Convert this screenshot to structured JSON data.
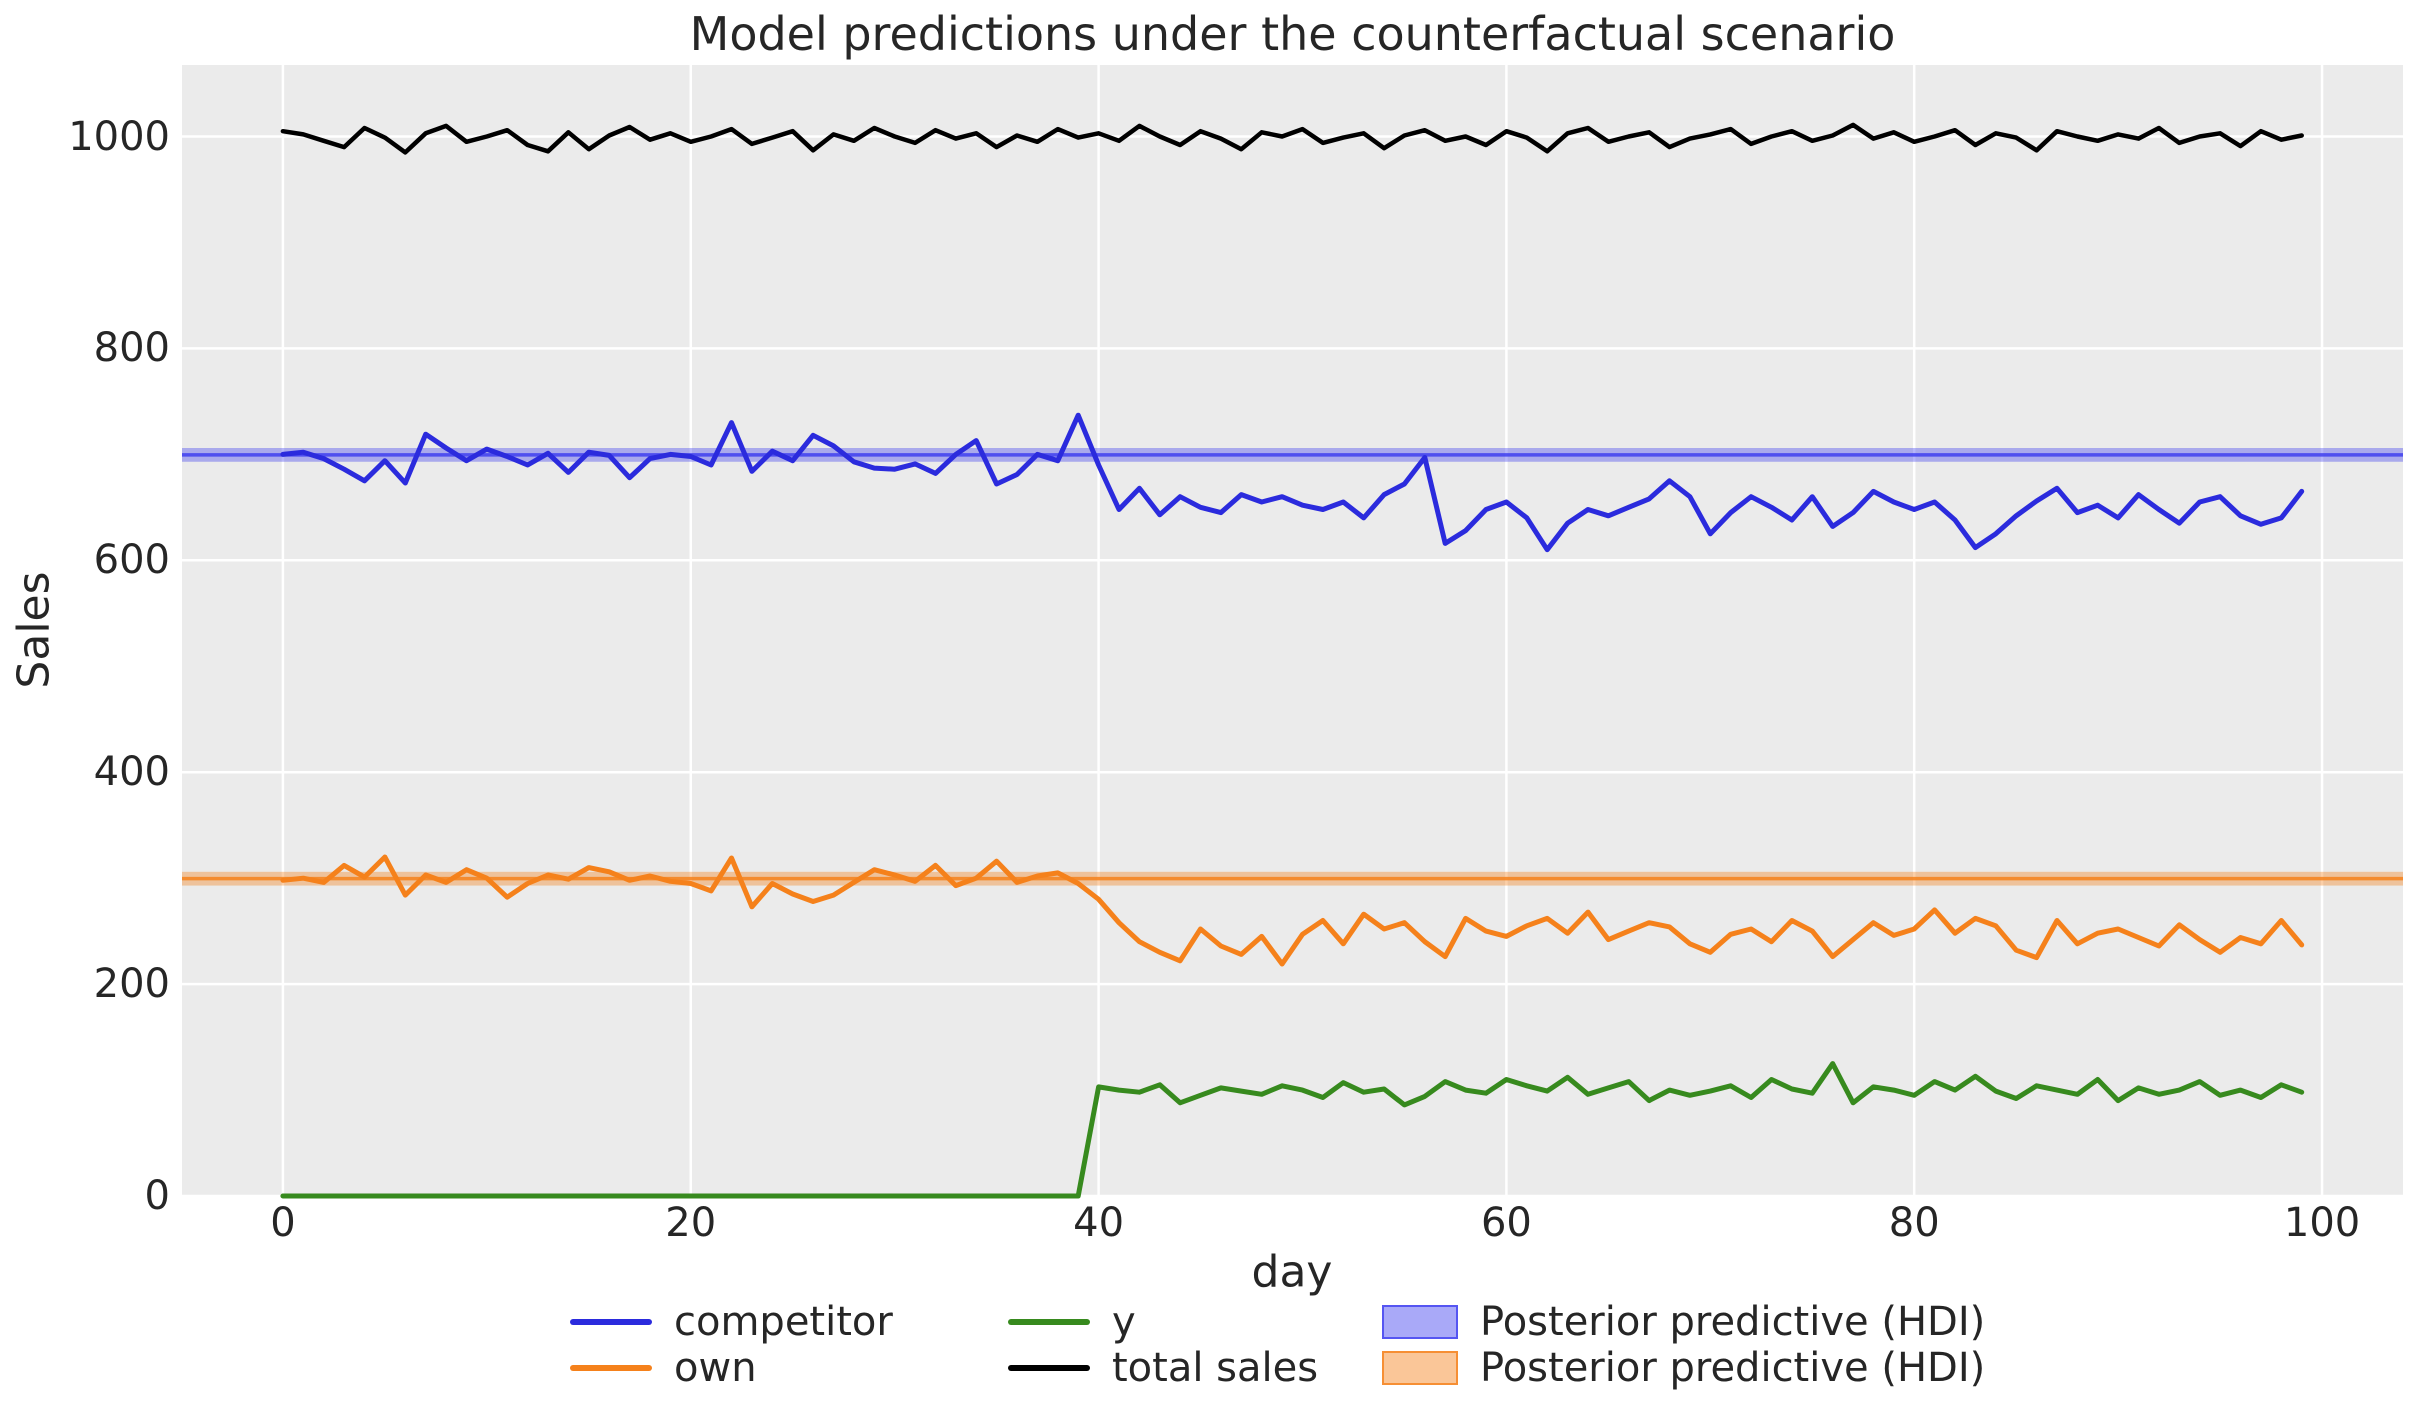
{
  "chart_data": {
    "type": "line",
    "title": "Model predictions under the counterfactual scenario",
    "xlabel": "day",
    "ylabel": "Sales",
    "xlim": [
      -4.95,
      103.97
    ],
    "ylim": [
      0,
      1067.5
    ],
    "xticks": [
      0,
      20,
      40,
      60,
      80,
      100
    ],
    "yticks": [
      0,
      200,
      400,
      600,
      800,
      1000
    ],
    "grid": true,
    "legend_position": "below",
    "x": [
      0,
      1,
      2,
      3,
      4,
      5,
      6,
      7,
      8,
      9,
      10,
      11,
      12,
      13,
      14,
      15,
      16,
      17,
      18,
      19,
      20,
      21,
      22,
      23,
      24,
      25,
      26,
      27,
      28,
      29,
      30,
      31,
      32,
      33,
      34,
      35,
      36,
      37,
      38,
      39,
      40,
      41,
      42,
      43,
      44,
      45,
      46,
      47,
      48,
      49,
      50,
      51,
      52,
      53,
      54,
      55,
      56,
      57,
      58,
      59,
      60,
      61,
      62,
      63,
      64,
      65,
      66,
      67,
      68,
      69,
      70,
      71,
      72,
      73,
      74,
      75,
      76,
      77,
      78,
      79,
      80,
      81,
      82,
      83,
      84,
      85,
      86,
      87,
      88,
      89,
      90,
      91,
      92,
      93,
      94,
      95,
      96,
      97,
      98,
      99
    ],
    "series": [
      {
        "name": "competitor",
        "color": "#2b2bdd",
        "linewidth": 5,
        "values": [
          700,
          702,
          696,
          686,
          675,
          694,
          673,
          719,
          706,
          694,
          705,
          698,
          690,
          701,
          683,
          702,
          699,
          678,
          696,
          700,
          698,
          690,
          730,
          684,
          703,
          694,
          718,
          708,
          693,
          687,
          686,
          691,
          682,
          700,
          713,
          672,
          681,
          700,
          694,
          737,
          690,
          648,
          668,
          643,
          660,
          650,
          645,
          662,
          655,
          660,
          652,
          648,
          655,
          640,
          662,
          672,
          697,
          616,
          628,
          648,
          655,
          640,
          610,
          635,
          648,
          642,
          650,
          658,
          675,
          660,
          625,
          645,
          660,
          650,
          638,
          660,
          632,
          645,
          665,
          655,
          648,
          655,
          638,
          612,
          625,
          642,
          656,
          668,
          645,
          652,
          640,
          662,
          648,
          635,
          655,
          660,
          642,
          634,
          640,
          665
        ]
      },
      {
        "name": "own",
        "color": "#f5811b",
        "linewidth": 5,
        "values": [
          298,
          300,
          296,
          312,
          301,
          320,
          284,
          303,
          296,
          308,
          300,
          282,
          295,
          303,
          299,
          310,
          306,
          298,
          302,
          297,
          295,
          288,
          319,
          273,
          295,
          285,
          278,
          284,
          296,
          308,
          303,
          297,
          312,
          293,
          300,
          316,
          296,
          302,
          305,
          295,
          280,
          258,
          240,
          230,
          222,
          252,
          236,
          228,
          245,
          219,
          247,
          260,
          238,
          266,
          252,
          258,
          240,
          226,
          262,
          250,
          245,
          255,
          262,
          248,
          268,
          242,
          250,
          258,
          254,
          238,
          230,
          247,
          252,
          240,
          260,
          250,
          226,
          242,
          258,
          246,
          252,
          270,
          248,
          262,
          255,
          232,
          225,
          260,
          238,
          248,
          252,
          244,
          236,
          256,
          242,
          230,
          244,
          238,
          260,
          237
        ]
      },
      {
        "name": "y",
        "color": "#378a1e",
        "linewidth": 5,
        "values": [
          0,
          0,
          0,
          0,
          0,
          0,
          0,
          0,
          0,
          0,
          0,
          0,
          0,
          0,
          0,
          0,
          0,
          0,
          0,
          0,
          0,
          0,
          0,
          0,
          0,
          0,
          0,
          0,
          0,
          0,
          0,
          0,
          0,
          0,
          0,
          0,
          0,
          0,
          0,
          0,
          103,
          100,
          98,
          105,
          88,
          95,
          102,
          99,
          96,
          104,
          100,
          93,
          107,
          98,
          101,
          86,
          94,
          108,
          100,
          97,
          110,
          104,
          99,
          112,
          96,
          102,
          108,
          90,
          100,
          95,
          99,
          104,
          93,
          110,
          101,
          97,
          125,
          88,
          103,
          100,
          95,
          108,
          100,
          113,
          99,
          92,
          104,
          100,
          96,
          110,
          90,
          102,
          96,
          100,
          108,
          95,
          100,
          93,
          105,
          98
        ]
      },
      {
        "name": "total sales",
        "color": "#000000",
        "linewidth": 4.5,
        "values": [
          1005,
          1002,
          996,
          990,
          1008,
          999,
          985,
          1003,
          1010,
          995,
          1000,
          1006,
          992,
          986,
          1004,
          988,
          1001,
          1009,
          997,
          1003,
          995,
          1000,
          1007,
          993,
          999,
          1005,
          987,
          1002,
          996,
          1008,
          1000,
          994,
          1006,
          998,
          1003,
          990,
          1001,
          995,
          1007,
          999,
          1003,
          996,
          1010,
          1000,
          992,
          1005,
          998,
          988,
          1004,
          1000,
          1007,
          994,
          999,
          1003,
          989,
          1001,
          1006,
          996,
          1000,
          992,
          1005,
          999,
          986,
          1003,
          1008,
          995,
          1000,
          1004,
          990,
          998,
          1002,
          1007,
          993,
          1000,
          1005,
          996,
          1001,
          1011,
          998,
          1004,
          995,
          1000,
          1006,
          992,
          1003,
          999,
          987,
          1005,
          1000,
          996,
          1002,
          998,
          1008,
          994,
          1000,
          1003,
          991,
          1005,
          997,
          1001
        ]
      }
    ],
    "bands": [
      {
        "name": "Posterior predictive (HDI)",
        "color": "#4040f0",
        "lo": 693,
        "hi": 706,
        "mean": 699.5
      },
      {
        "name": "Posterior predictive (HDI)",
        "color": "#f5811b",
        "lo": 293,
        "hi": 306,
        "mean": 299.5
      }
    ]
  },
  "legend": {
    "columns": [
      [
        {
          "label": "competitor",
          "swatch": "line",
          "color": "#2b2bdd"
        },
        {
          "label": "own",
          "swatch": "line",
          "color": "#f5811b"
        }
      ],
      [
        {
          "label": "y",
          "swatch": "line",
          "color": "#378a1e"
        },
        {
          "label": "total sales",
          "swatch": "line",
          "color": "#000000"
        }
      ],
      [
        {
          "label": "Posterior predictive (HDI)",
          "swatch": "patch",
          "color": "#4040f0"
        },
        {
          "label": "Posterior predictive (HDI)",
          "swatch": "patch",
          "color": "#f5811b"
        }
      ]
    ]
  },
  "style": {
    "figure_bg": "#ffffff",
    "plot_bg": "#ebebeb",
    "grid_color": "#ffffff",
    "text_color": "#262626"
  }
}
